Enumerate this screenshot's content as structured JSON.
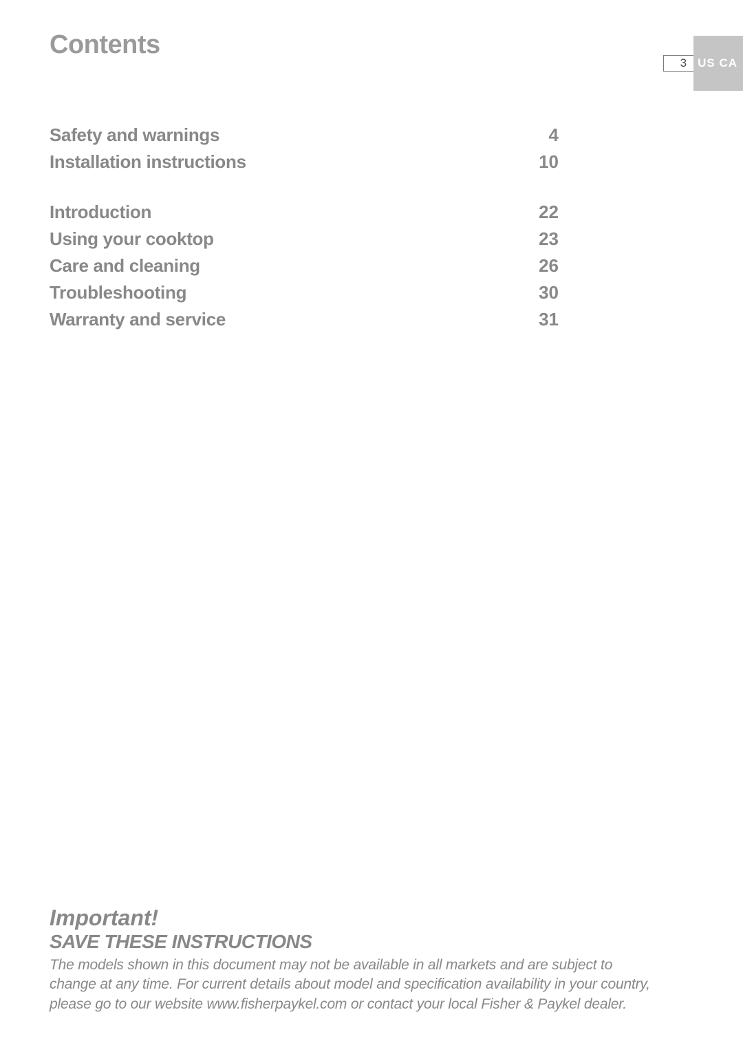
{
  "header": {
    "title": "Contents",
    "page_number": "3",
    "region": "US CA"
  },
  "toc": {
    "group1": [
      {
        "label": "Safety and warnings",
        "page": "4"
      },
      {
        "label": "Installation instructions",
        "page": "10"
      }
    ],
    "group2": [
      {
        "label": "Introduction",
        "page": "22"
      },
      {
        "label": "Using your cooktop",
        "page": "23"
      },
      {
        "label": "Care and cleaning",
        "page": "26"
      },
      {
        "label": "Troubleshooting",
        "page": "30"
      },
      {
        "label": "Warranty and service",
        "page": "31"
      }
    ]
  },
  "footer": {
    "important": "Important!",
    "save": "SAVE THESE INSTRUCTIONS",
    "disclaimer": "The models shown in this document may not be available in all markets and are subject to change at any time. For current details about model and specification availability in your country, please go to our website www.fisherpaykel.com or contact your local Fisher & Paykel dealer."
  },
  "colors": {
    "title_gray": "#9a9a9a",
    "text_gray": "#888888",
    "tab_bg": "#c5c5c5",
    "box_border": "#7a7a7a"
  }
}
